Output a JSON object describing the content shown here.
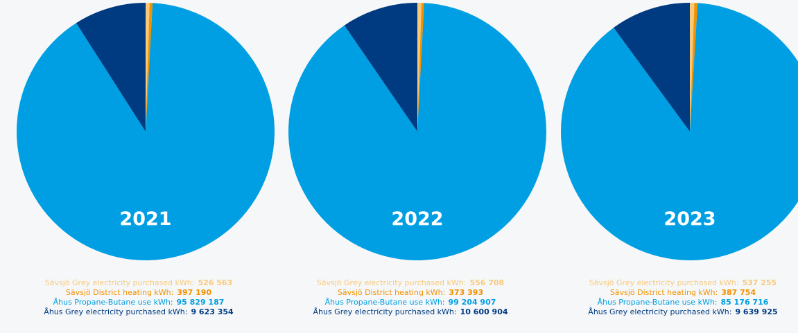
{
  "chart_data": [
    {
      "type": "pie",
      "title": "2021",
      "categories": [
        "Sävsjö Grey electricity purchased kWh:",
        "Sävsjö District heating kWh:",
        "Åhus Propane-Butane use kWh:",
        "Åhus Grey electricity purchased kWh:"
      ],
      "values": [
        526563,
        397190,
        95829187,
        9623354
      ],
      "value_labels": [
        "526 563",
        "397 190",
        "95 829 187",
        "9 623 354"
      ],
      "colors": [
        "#f9c97a",
        "#f39200",
        "#009fe3",
        "#003a80"
      ]
    },
    {
      "type": "pie",
      "title": "2022",
      "categories": [
        "Sävsjö Grey electricity purchased kWh:",
        "Sävsjö District heating kWh:",
        "Åhus Propane-Butane use kWh:",
        "Åhus Grey electricity purchased kWh:"
      ],
      "values": [
        556708,
        373393,
        99204907,
        10600904
      ],
      "value_labels": [
        "556 708",
        "373 393",
        "99 204 907",
        "10 600 904"
      ],
      "colors": [
        "#f9c97a",
        "#f39200",
        "#009fe3",
        "#003a80"
      ]
    },
    {
      "type": "pie",
      "title": "2023",
      "categories": [
        "Sävsjö Grey electricity purchased kWh:",
        "Sävsjö District heating kWh:",
        "Åhus Propane-Butane use kWh:",
        "Åhus Grey electricity purchased kWh:"
      ],
      "values": [
        537255,
        387754,
        85176716,
        9639925
      ],
      "value_labels": [
        "537 255",
        "387 754",
        "85 176 716",
        "9 639 925"
      ],
      "colors": [
        "#f9c97a",
        "#f39200",
        "#009fe3",
        "#003a80"
      ]
    }
  ]
}
